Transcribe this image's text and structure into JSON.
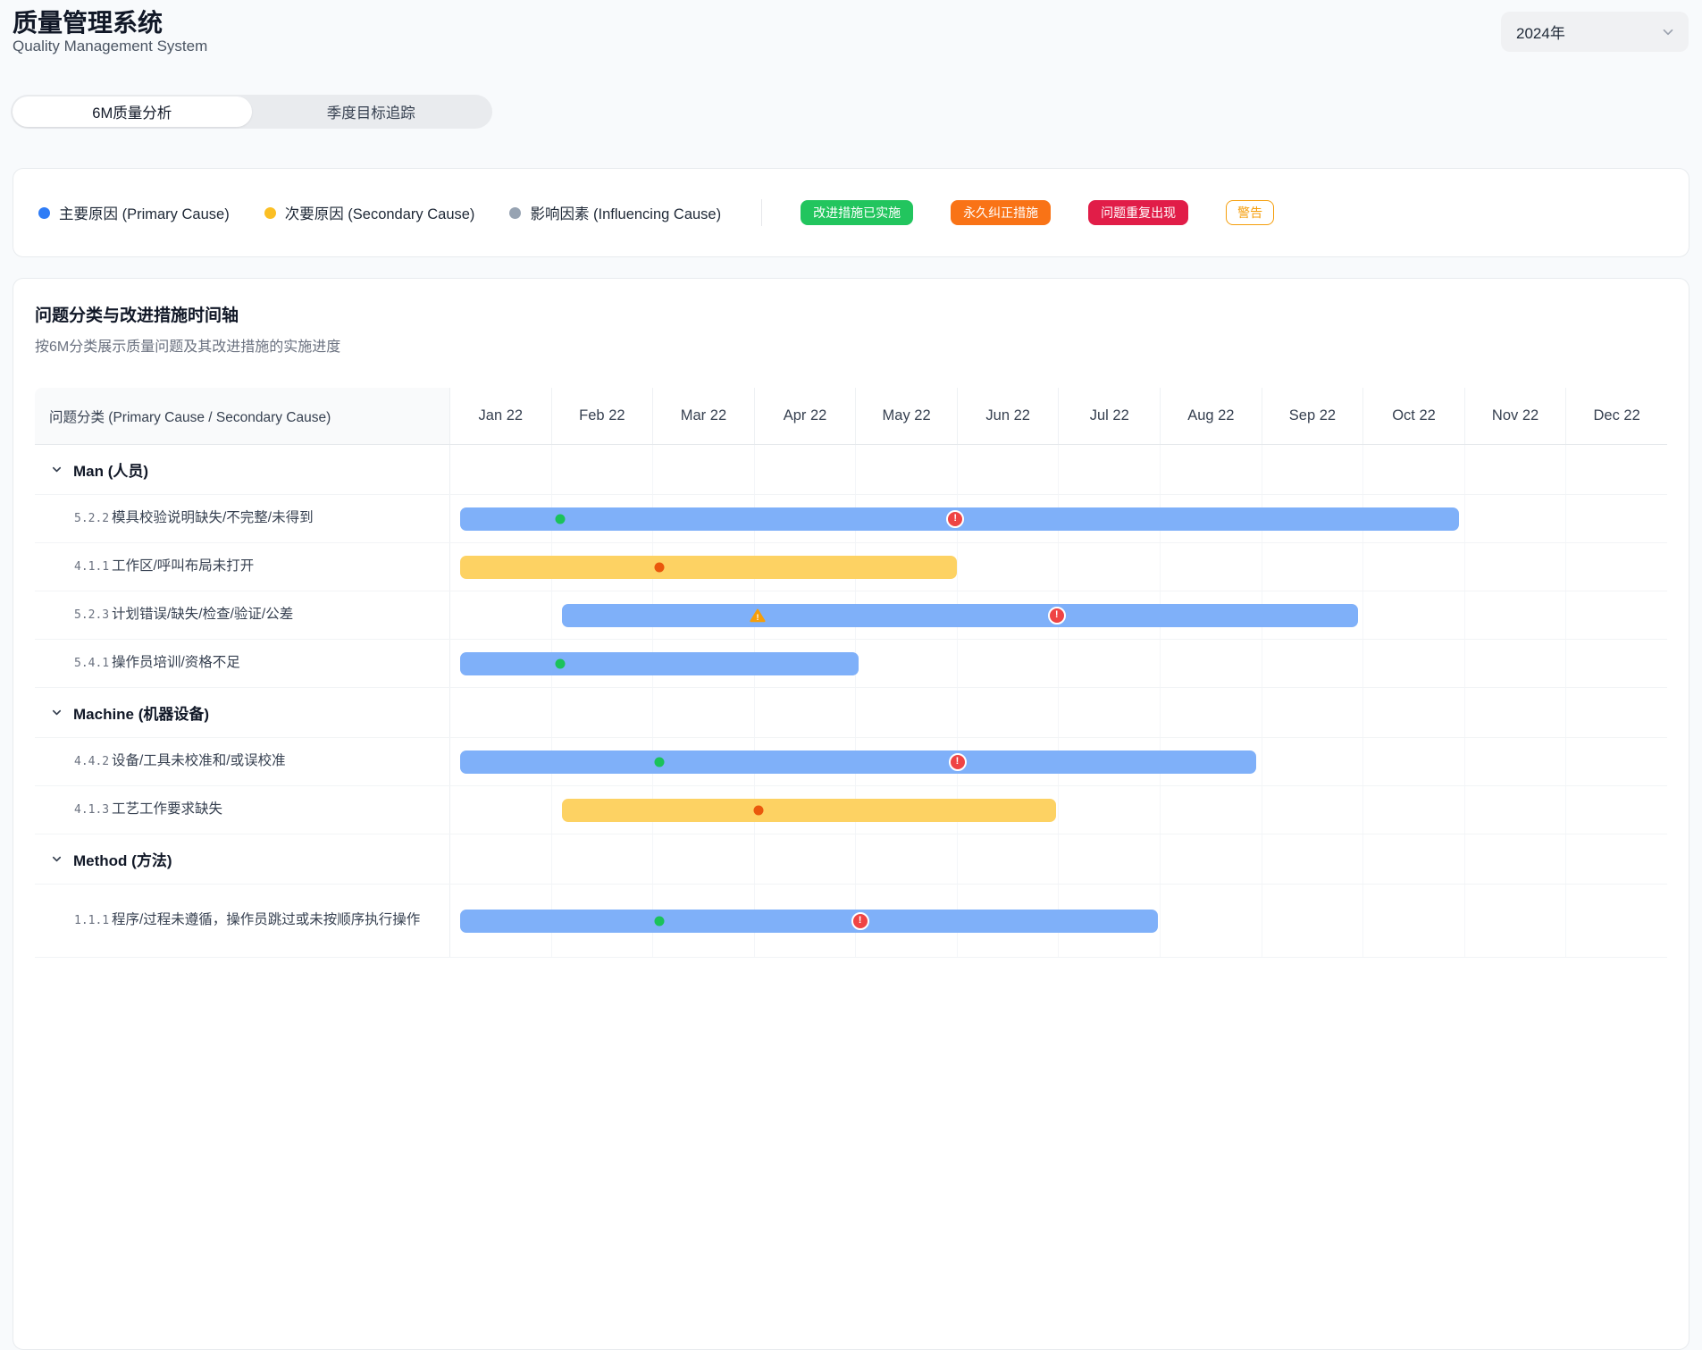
{
  "header": {
    "title": "质量管理系统",
    "subtitle": "Quality Management System",
    "year_select": {
      "value": "2024年"
    }
  },
  "tabs": [
    {
      "label": "6M质量分析",
      "active": true
    },
    {
      "label": "季度目标追踪",
      "active": false
    }
  ],
  "legend": {
    "items": [
      {
        "label": "主要原因 (Primary Cause)",
        "color": "#2e7cf6"
      },
      {
        "label": "次要原因 (Secondary Cause)",
        "color": "#fbbf24"
      },
      {
        "label": "影响因素 (Influencing Cause)",
        "color": "#97a3b2"
      }
    ],
    "badges": [
      {
        "label": "改进措施已实施",
        "style": "solid",
        "color": "#22c55e"
      },
      {
        "label": "永久纠正措施",
        "style": "solid",
        "color": "#f97316"
      },
      {
        "label": "问题重复出现",
        "style": "solid",
        "color": "#e11d48"
      },
      {
        "label": "警告",
        "style": "outline",
        "color": "#f59e0b"
      }
    ]
  },
  "chart": {
    "title": "问题分类与改进措施时间轴",
    "subtitle": "按6M分类展示质量问题及其改进措施的实施进度",
    "first_column_header": "问题分类 (Primary Cause / Secondary Cause)"
  },
  "chart_data": {
    "type": "gantt",
    "x_axis": {
      "unit": "month",
      "range_months": 12
    },
    "months": [
      "Jan 22",
      "Feb 22",
      "Mar 22",
      "Apr 22",
      "May 22",
      "Jun 22",
      "Jul 22",
      "Aug 22",
      "Sep 22",
      "Oct 22",
      "Nov 22",
      "Dec 22"
    ],
    "colors": {
      "bar_primary": "#7fb0f9",
      "bar_secondary": "#fdd263",
      "marker_implemented": "#1bc25a",
      "marker_permanent": "#ea580c",
      "marker_recurrence": "#ef4444",
      "marker_warning": "#f59e0b"
    },
    "groups": [
      {
        "name": "Man (人员)",
        "rows": [
          {
            "code": "5.2.2",
            "label": "模具校验说明缺失/不完整/未得到",
            "bar": {
              "type": "primary",
              "start": 0.1,
              "end": 9.95
            },
            "markers": [
              {
                "type": "implemented",
                "at": 1.08
              },
              {
                "type": "recurrence",
                "at": 4.98
              }
            ]
          },
          {
            "code": "4.1.1",
            "label": "工作区/呼叫布局未打开",
            "bar": {
              "type": "secondary",
              "start": 0.1,
              "end": 5.0
            },
            "markers": [
              {
                "type": "permanent",
                "at": 2.06
              }
            ]
          },
          {
            "code": "5.2.3",
            "label": "计划错误/缺失/检查/验证/公差",
            "bar": {
              "type": "primary",
              "start": 1.1,
              "end": 8.95
            },
            "markers": [
              {
                "type": "warning",
                "at": 3.03
              },
              {
                "type": "recurrence",
                "at": 5.98
              }
            ]
          },
          {
            "code": "5.4.1",
            "label": "操作员培训/资格不足",
            "bar": {
              "type": "primary",
              "start": 0.1,
              "end": 4.03
            },
            "markers": [
              {
                "type": "implemented",
                "at": 1.08
              }
            ]
          }
        ]
      },
      {
        "name": "Machine (机器设备)",
        "rows": [
          {
            "code": "4.4.2",
            "label": "设备/工具未校准和/或误校准",
            "bar": {
              "type": "primary",
              "start": 0.1,
              "end": 7.95
            },
            "markers": [
              {
                "type": "implemented",
                "at": 2.06
              },
              {
                "type": "recurrence",
                "at": 5.0
              }
            ]
          },
          {
            "code": "4.1.3",
            "label": "工艺工作要求缺失",
            "bar": {
              "type": "secondary",
              "start": 1.1,
              "end": 5.97
            },
            "markers": [
              {
                "type": "permanent",
                "at": 3.04
              }
            ]
          }
        ]
      },
      {
        "name": "Method (方法)",
        "rows": [
          {
            "code": "1.1.1",
            "label": "程序/过程未遵循，操作员跳过或未按顺序执行操作",
            "bar": {
              "type": "primary",
              "start": 0.1,
              "end": 6.98
            },
            "markers": [
              {
                "type": "implemented",
                "at": 2.06
              },
              {
                "type": "recurrence",
                "at": 4.04
              }
            ]
          }
        ]
      }
    ]
  }
}
